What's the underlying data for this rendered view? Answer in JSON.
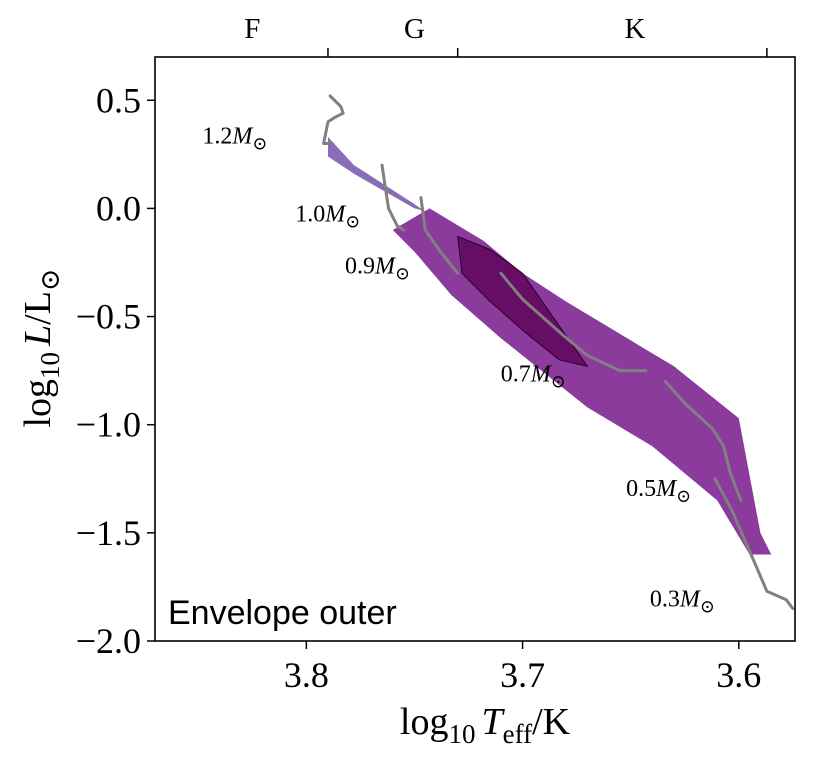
{
  "chart_data": {
    "type": "area",
    "annotation": "Envelope outer",
    "xlabel": {
      "base": "log",
      "sub": "10",
      "var": "T",
      "varsub": "eff",
      "unit": "/K"
    },
    "ylabel": {
      "base": "log",
      "sub": "10",
      "var": "L",
      "unit": "/L",
      "sun": "⊙"
    },
    "xlim": [
      3.87,
      3.574
    ],
    "ylim": [
      -2.0,
      0.7
    ],
    "xticks": [
      {
        "value": 3.8,
        "label": "3.8"
      },
      {
        "value": 3.7,
        "label": "3.7"
      },
      {
        "value": 3.6,
        "label": "3.6"
      }
    ],
    "yticks": [
      {
        "value": 0.5,
        "label": "0.5"
      },
      {
        "value": 0.0,
        "label": "0.0"
      },
      {
        "value": -0.5,
        "label": "−0.5"
      },
      {
        "value": -1.0,
        "label": "−1.0"
      },
      {
        "value": -1.5,
        "label": "−1.5"
      },
      {
        "value": -2.0,
        "label": "−2.0"
      }
    ],
    "spectral_classes": [
      {
        "label": "F",
        "center": 3.825
      },
      {
        "label": "G",
        "center": 3.75
      },
      {
        "label": "K",
        "center": 3.648
      }
    ],
    "spectral_boundaries": [
      3.79,
      3.73,
      3.587
    ],
    "regions": [
      {
        "color": "#8b6cb8",
        "points": [
          [
            3.79,
            0.33
          ],
          [
            3.778,
            0.2
          ],
          [
            3.75,
            0.02
          ],
          [
            3.733,
            -0.1
          ],
          [
            3.742,
            -0.02
          ],
          [
            3.75,
            0.0
          ],
          [
            3.778,
            0.16
          ],
          [
            3.79,
            0.24
          ]
        ]
      },
      {
        "color": "#8a3b9c",
        "points": [
          [
            3.743,
            0.0
          ],
          [
            3.718,
            -0.15
          ],
          [
            3.7,
            -0.3
          ],
          [
            3.68,
            -0.43
          ],
          [
            3.63,
            -0.73
          ],
          [
            3.6,
            -0.97
          ],
          [
            3.59,
            -1.5
          ],
          [
            3.585,
            -1.6
          ],
          [
            3.595,
            -1.6
          ],
          [
            3.61,
            -1.35
          ],
          [
            3.64,
            -1.1
          ],
          [
            3.67,
            -0.92
          ],
          [
            3.71,
            -0.6
          ],
          [
            3.733,
            -0.4
          ],
          [
            3.75,
            -0.2
          ],
          [
            3.76,
            -0.1
          ]
        ]
      },
      {
        "color": "#660d66",
        "points": [
          [
            3.73,
            -0.13
          ],
          [
            3.715,
            -0.19
          ],
          [
            3.7,
            -0.3
          ],
          [
            3.67,
            -0.73
          ],
          [
            3.683,
            -0.7
          ],
          [
            3.698,
            -0.58
          ],
          [
            3.715,
            -0.43
          ],
          [
            3.728,
            -0.3
          ]
        ]
      }
    ],
    "tracks": [
      {
        "label": "1.2",
        "label_at": [
          3.818,
          0.3
        ],
        "points": [
          [
            3.789,
            0.52
          ],
          [
            3.784,
            0.47
          ],
          [
            3.783,
            0.44
          ],
          [
            3.787,
            0.42
          ],
          [
            3.79,
            0.4
          ],
          [
            3.792,
            0.3
          ],
          [
            3.788,
            0.3
          ]
        ]
      },
      {
        "label": "1.0",
        "label_at": [
          3.775,
          -0.06
        ],
        "points": [
          [
            3.765,
            0.2
          ],
          [
            3.762,
            0.0
          ],
          [
            3.758,
            -0.08
          ],
          [
            3.755,
            -0.1
          ]
        ]
      },
      {
        "label": "0.9",
        "label_at": [
          3.752,
          -0.3
        ],
        "points": [
          [
            3.747,
            0.05
          ],
          [
            3.745,
            -0.1
          ],
          [
            3.738,
            -0.2
          ],
          [
            3.73,
            -0.3
          ]
        ]
      },
      {
        "label": "0.7",
        "label_at": [
          3.68,
          -0.8
        ],
        "points": [
          [
            3.71,
            -0.3
          ],
          [
            3.7,
            -0.42
          ],
          [
            3.682,
            -0.58
          ],
          [
            3.67,
            -0.68
          ],
          [
            3.655,
            -0.75
          ],
          [
            3.643,
            -0.75
          ]
        ]
      },
      {
        "label": "0.5",
        "label_at": [
          3.622,
          -1.33
        ],
        "points": [
          [
            3.634,
            -0.8
          ],
          [
            3.625,
            -0.9
          ],
          [
            3.612,
            -1.02
          ],
          [
            3.607,
            -1.1
          ],
          [
            3.604,
            -1.22
          ],
          [
            3.601,
            -1.3
          ],
          [
            3.599,
            -1.35
          ]
        ]
      },
      {
        "label": "0.3",
        "label_at": [
          3.611,
          -1.84
        ],
        "points": [
          [
            3.611,
            -1.25
          ],
          [
            3.603,
            -1.4
          ],
          [
            3.593,
            -1.63
          ],
          [
            3.587,
            -1.77
          ],
          [
            3.578,
            -1.81
          ],
          [
            3.575,
            -1.85
          ]
        ]
      }
    ],
    "mass_unit": {
      "var": "M",
      "sun": "⊙"
    },
    "colors": {
      "envelope_light": "#8b6cb8",
      "envelope_mid": "#8a3b9c",
      "envelope_dark": "#660d66",
      "track": "#808080"
    },
    "grid": false,
    "legend": "none"
  }
}
